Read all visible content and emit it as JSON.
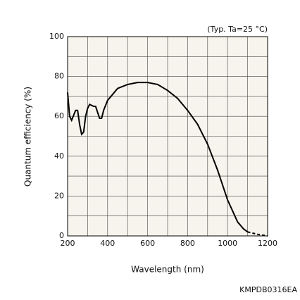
{
  "chart_data": {
    "type": "line",
    "annotation": "(Typ. Ta=25 °C)",
    "x_label": "Wavelength (nm)",
    "y_label": "Quantum efficiency (%)",
    "footer": "KMPDB0316EA",
    "background": "#f6f4ec",
    "grid": true,
    "xlim": [
      200,
      1200
    ],
    "xticks": [
      200,
      400,
      600,
      800,
      1000,
      1200
    ],
    "xminor": [
      300,
      500,
      700,
      900,
      1100
    ],
    "ylim": [
      0,
      100
    ],
    "yticks": [
      0,
      20,
      40,
      60,
      80,
      100
    ],
    "yminor": [
      10,
      30,
      50,
      70,
      90
    ],
    "series": [
      {
        "color": "#000000",
        "style": "solid",
        "x": [
          200,
          210,
          220,
          240,
          250,
          260,
          270,
          280,
          290,
          300,
          310,
          330,
          340,
          350,
          360,
          370,
          380,
          400,
          450,
          500,
          550,
          600,
          650,
          700,
          750,
          800,
          850,
          900,
          950,
          1000,
          1050,
          1080,
          1100
        ],
        "values": [
          72,
          60,
          58,
          63,
          63,
          56,
          51,
          52,
          60,
          64,
          66,
          65,
          65,
          62,
          59,
          59,
          63,
          68,
          74,
          76,
          77,
          77,
          76,
          73,
          69,
          63,
          56,
          46,
          33,
          18,
          7,
          3.5,
          2
        ]
      },
      {
        "color": "#000000",
        "style": "dashed",
        "x": [
          1100,
          1150,
          1200
        ],
        "values": [
          2,
          0.8,
          0
        ]
      }
    ]
  }
}
